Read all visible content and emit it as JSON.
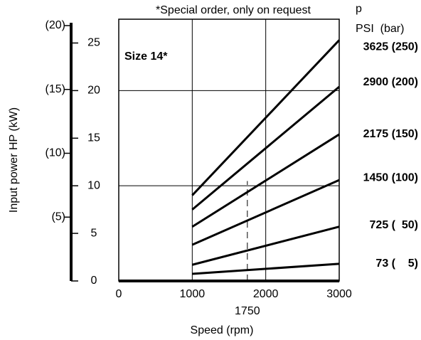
{
  "chart_data": {
    "type": "line",
    "title": "*Special order, only on request",
    "annotation": "Size 14*",
    "legend_header": "p",
    "legend_subheader": "PSI  (bar)",
    "xlabel": "Speed (rpm)",
    "ylabel": "Input power HP (kW)",
    "xlim": [
      0,
      3000
    ],
    "xticks": [
      0,
      1000,
      2000,
      3000
    ],
    "ylim": [
      0,
      27.5
    ],
    "yticks": [
      0,
      5,
      10,
      15,
      20,
      25
    ],
    "y2lim": [
      0,
      20.5
    ],
    "y2ticks": [
      {
        "value": 5,
        "label": "(5)"
      },
      {
        "value": 10,
        "label": "(10)"
      },
      {
        "value": 15,
        "label": "(15)"
      },
      {
        "value": 20,
        "label": "(20)"
      }
    ],
    "grid_x": [
      1000,
      2000
    ],
    "grid_y": [
      10,
      20
    ],
    "marker_line": {
      "x": 1750,
      "label": "1750",
      "ylim": [
        0,
        10.5
      ]
    },
    "color": "#000000",
    "x": [
      1000,
      3000
    ],
    "series": [
      {
        "name": "3625 (250)",
        "color": "#000000",
        "values": [
          9.0,
          25.3
        ]
      },
      {
        "name": "2900 (200)",
        "color": "#000000",
        "values": [
          7.5,
          20.4
        ]
      },
      {
        "name": "2175 (150)",
        "color": "#000000",
        "values": [
          5.7,
          15.4
        ]
      },
      {
        "name": "1450 (100)",
        "color": "#000000",
        "values": [
          3.8,
          10.6
        ]
      },
      {
        "name": "725 (  50)",
        "color": "#000000",
        "values": [
          1.7,
          5.7
        ]
      },
      {
        "name": "73 (    5)",
        "color": "#000000",
        "values": [
          0.75,
          1.8
        ]
      }
    ]
  }
}
